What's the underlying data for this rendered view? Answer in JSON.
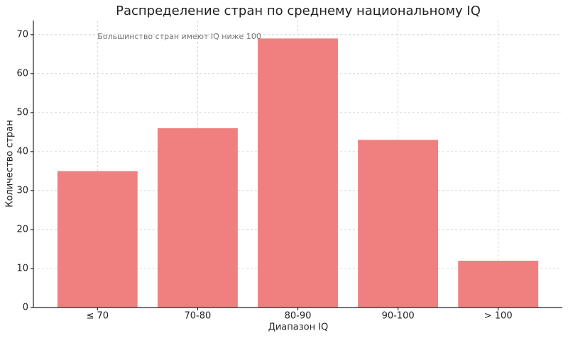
{
  "chart_data": {
    "type": "bar",
    "title": "Распределение стран по среднему национальному IQ",
    "x_label": "Диапазон IQ",
    "y_label": "Количество стран",
    "annotation": "Большинство стран имеют IQ ниже 100",
    "categories": [
      "≤ 70",
      "70-80",
      "80-90",
      "90-100",
      "> 100"
    ],
    "values": [
      35,
      46,
      69,
      43,
      12
    ],
    "color": "#f08080",
    "ylim": [
      0,
      73.6
    ],
    "yticks": [
      0,
      10,
      20,
      30,
      40,
      50,
      60,
      70
    ],
    "grid": true
  }
}
